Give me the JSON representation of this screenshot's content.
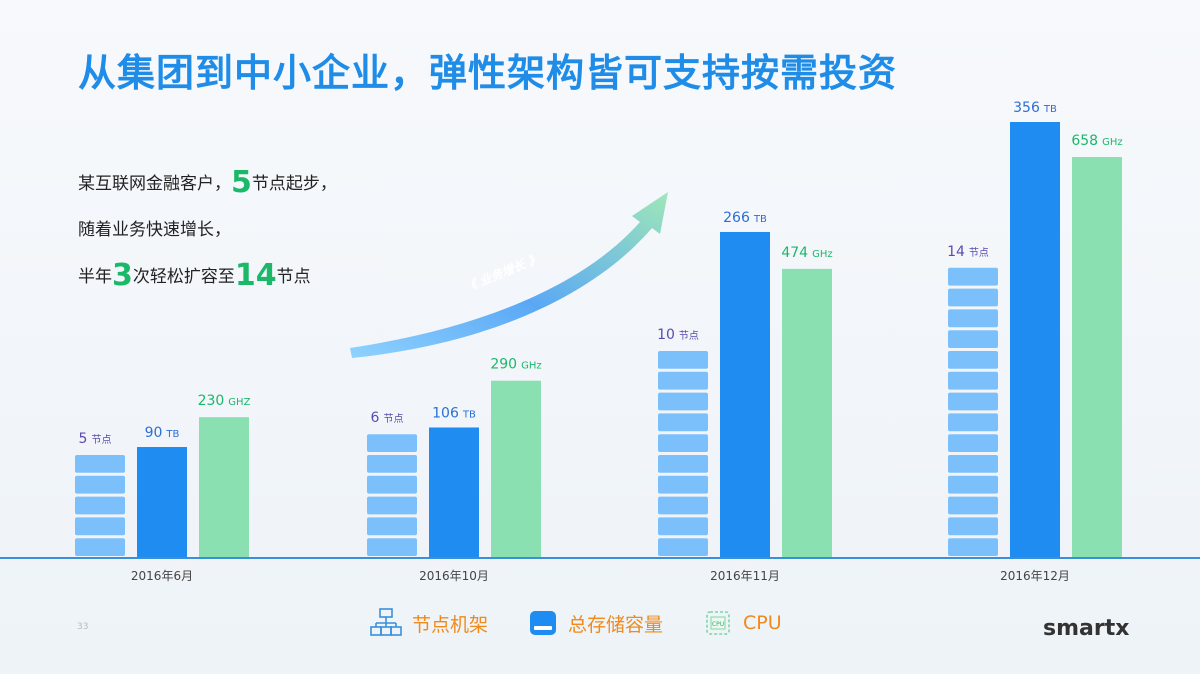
{
  "title": "从集团到中小企业，弹性架构皆可支持按需投资",
  "intro": {
    "line1_pre": "某互联网金融客户，",
    "line1_num": "5",
    "line1_post": "节点起步，",
    "line2": "随着业务快速增长，",
    "line3_a": "半年",
    "line3_num1": "3",
    "line3_b": "次轻松扩容至",
    "line3_num2": "14",
    "line3_c": "节点"
  },
  "arrow_label": "业务增长",
  "legend": {
    "nodes": "节点机架",
    "storage": "总存储容量",
    "cpu": "CPU",
    "cpu_icon_text": "CPU"
  },
  "page_number": "33",
  "brand": "smartx",
  "colors": {
    "title": "#1f8de8",
    "node": "#7cc0fb",
    "storage": "#1e8cf0",
    "cpu": "#8ae0b0",
    "node_label": "#5a4bb0",
    "storage_label": "#2b6fd6",
    "cpu_label": "#1bb86a",
    "legend_text": "#f08a1c"
  },
  "chart_data": {
    "type": "bar",
    "categories": [
      "2016年6月",
      "2016年10月",
      "2016年11月",
      "2016年12月"
    ],
    "series": [
      {
        "name": "节点机架",
        "unit": "节点",
        "values": [
          5,
          6,
          10,
          14
        ]
      },
      {
        "name": "总存储容量",
        "unit": "TB",
        "values": [
          90,
          106,
          266,
          356
        ]
      },
      {
        "name": "CPU",
        "units": [
          "GHZ",
          "GHz",
          "GHz",
          "GHz"
        ],
        "values": [
          230,
          290,
          474,
          658
        ]
      }
    ]
  }
}
